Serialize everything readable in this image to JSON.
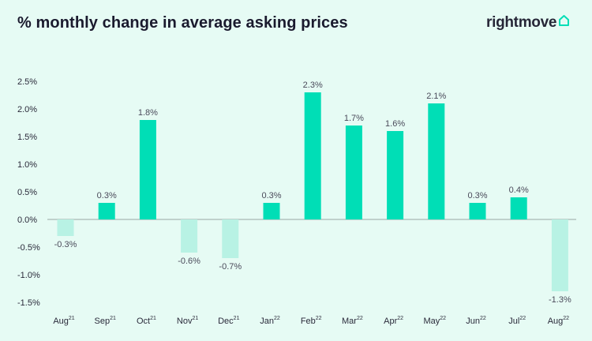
{
  "title": "% monthly change in average asking prices",
  "brand": {
    "name": "rightmove",
    "icon": "house-icon",
    "color": "#00deb6"
  },
  "colors": {
    "positive": "#00deb6",
    "negative": "#b8f2e4",
    "background": "#e6fbf4",
    "text": "#2a2a3a"
  },
  "chart_data": {
    "type": "bar",
    "title": "% monthly change in average asking prices",
    "xlabel": "",
    "ylabel": "",
    "ylim": [
      -1.5,
      2.5
    ],
    "yticks": [
      2.5,
      2.0,
      1.5,
      1.0,
      0.5,
      0.0,
      -0.5,
      -1.0,
      -1.5
    ],
    "ytick_labels": [
      "2.5%",
      "2.0%",
      "1.5%",
      "1.0%",
      "0.5%",
      "0.0%",
      "-0.5%",
      "-1.0%",
      "-1.5%"
    ],
    "grid": false,
    "categories": [
      {
        "month": "Aug",
        "year": "21"
      },
      {
        "month": "Sep",
        "year": "21"
      },
      {
        "month": "Oct",
        "year": "21"
      },
      {
        "month": "Nov",
        "year": "21"
      },
      {
        "month": "Dec",
        "year": "21"
      },
      {
        "month": "Jan",
        "year": "22"
      },
      {
        "month": "Feb",
        "year": "22"
      },
      {
        "month": "Mar",
        "year": "22"
      },
      {
        "month": "Apr",
        "year": "22"
      },
      {
        "month": "May",
        "year": "22"
      },
      {
        "month": "Jun",
        "year": "22"
      },
      {
        "month": "Jul",
        "year": "22"
      },
      {
        "month": "Aug",
        "year": "22"
      }
    ],
    "values": [
      -0.3,
      0.3,
      1.8,
      -0.6,
      -0.7,
      0.3,
      2.3,
      1.7,
      1.6,
      2.1,
      0.3,
      0.4,
      -1.3
    ],
    "labels": [
      "-0.3%",
      "0.3%",
      "1.8%",
      "-0.6%",
      "-0.7%",
      "0.3%",
      "2.3%",
      "1.7%",
      "1.6%",
      "2.1%",
      "0.3%",
      "0.4%",
      "-1.3%"
    ]
  }
}
